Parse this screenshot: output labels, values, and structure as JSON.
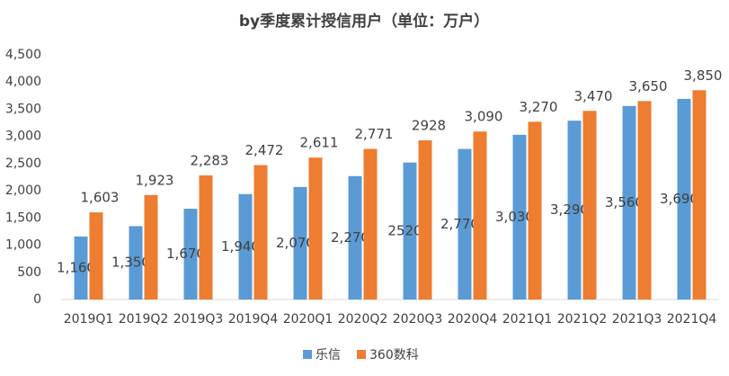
{
  "chart_data": {
    "type": "bar",
    "title": "by季度累计授信用户（单位：万户）",
    "categories": [
      "2019Q1",
      "2019Q2",
      "2019Q3",
      "2019Q4",
      "2020Q1",
      "2020Q2",
      "2020Q3",
      "2020Q4",
      "2021Q1",
      "2021Q2",
      "2021Q3",
      "2021Q4"
    ],
    "series": [
      {
        "name": "乐信",
        "color": "#5b9bd5",
        "values": [
          1160,
          1350,
          1670,
          1940,
          2070,
          2270,
          2520,
          2770,
          3030,
          3290,
          3560,
          3690
        ],
        "value_labels": [
          "1,160",
          "1,350",
          "1,670",
          "1,940",
          "2,070",
          "2,270",
          "2520",
          "2,770",
          "3,030",
          "3,290",
          "3,560",
          "3,690"
        ]
      },
      {
        "name": "360数科",
        "color": "#ed7d31",
        "values": [
          1603,
          1923,
          2283,
          2472,
          2611,
          2771,
          2928,
          3090,
          3270,
          3470,
          3650,
          3850
        ],
        "value_labels": [
          "1,603",
          "1,923",
          "2,283",
          "2,472",
          "2,611",
          "2,771",
          "2928",
          "3,090",
          "3,270",
          "3,470",
          "3,650",
          "3,850"
        ]
      }
    ],
    "ylim": [
      0,
      4500
    ],
    "yticks": [
      0,
      500,
      {
        "value": 1000,
        "label": "1,000"
      },
      {
        "value": 1500,
        "label": "1,500"
      },
      {
        "value": 2000,
        "label": "2,000"
      },
      {
        "value": 2500,
        "label": "2,500"
      },
      {
        "value": 3000,
        "label": "3,000"
      },
      {
        "value": 3500,
        "label": "3,500"
      },
      {
        "value": 4000,
        "label": "4,000"
      },
      {
        "value": 4500,
        "label": "4,500"
      }
    ],
    "grid": false
  }
}
